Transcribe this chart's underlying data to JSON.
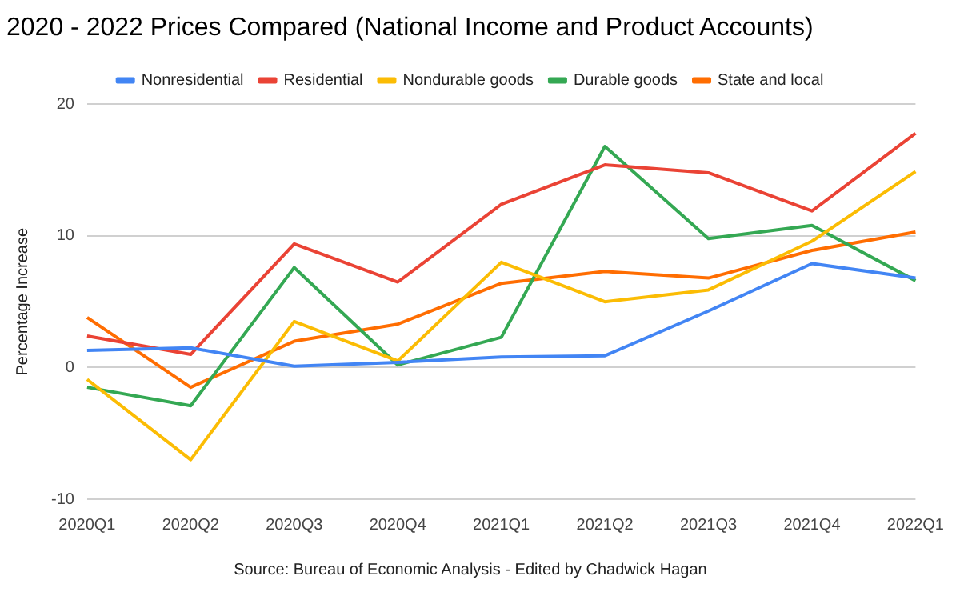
{
  "chart_data": {
    "type": "line",
    "title": "2020 - 2022 Prices Compared (National Income and Product Accounts)",
    "ylabel": "Percentage Increase",
    "annotations": [
      "Source: Bureau of Economic Analysis - Edited by Chadwick Hagan"
    ],
    "categories": [
      "2020Q1",
      "2020Q2",
      "2020Q3",
      "2020Q4",
      "2021Q1",
      "2021Q2",
      "2021Q3",
      "2021Q4",
      "2022Q1"
    ],
    "series": [
      {
        "name": "Nonresidential",
        "color": "#4285f4",
        "values": [
          1.3,
          1.5,
          0.1,
          0.4,
          0.8,
          0.9,
          4.3,
          7.9,
          6.8
        ]
      },
      {
        "name": "Residential",
        "color": "#ea4335",
        "values": [
          2.4,
          1.0,
          9.4,
          6.5,
          12.4,
          15.4,
          14.8,
          11.9,
          17.8
        ]
      },
      {
        "name": "Nondurable goods",
        "color": "#fbbc04",
        "values": [
          -0.9,
          -7.0,
          3.5,
          0.5,
          8.0,
          5.0,
          5.9,
          9.6,
          14.9
        ]
      },
      {
        "name": "Durable goods",
        "color": "#34a853",
        "values": [
          -1.5,
          -2.9,
          7.6,
          0.2,
          2.3,
          16.8,
          9.8,
          10.8,
          6.6
        ]
      },
      {
        "name": "State and local",
        "color": "#ff6d01",
        "values": [
          3.8,
          -1.5,
          2.0,
          3.3,
          6.4,
          7.3,
          6.8,
          8.9,
          10.3
        ]
      }
    ],
    "ylim": [
      -10,
      20
    ],
    "yticks": [
      -10,
      0,
      10,
      20
    ],
    "grid": "y",
    "legend": "top",
    "marker": "none",
    "line_style": "solid"
  }
}
